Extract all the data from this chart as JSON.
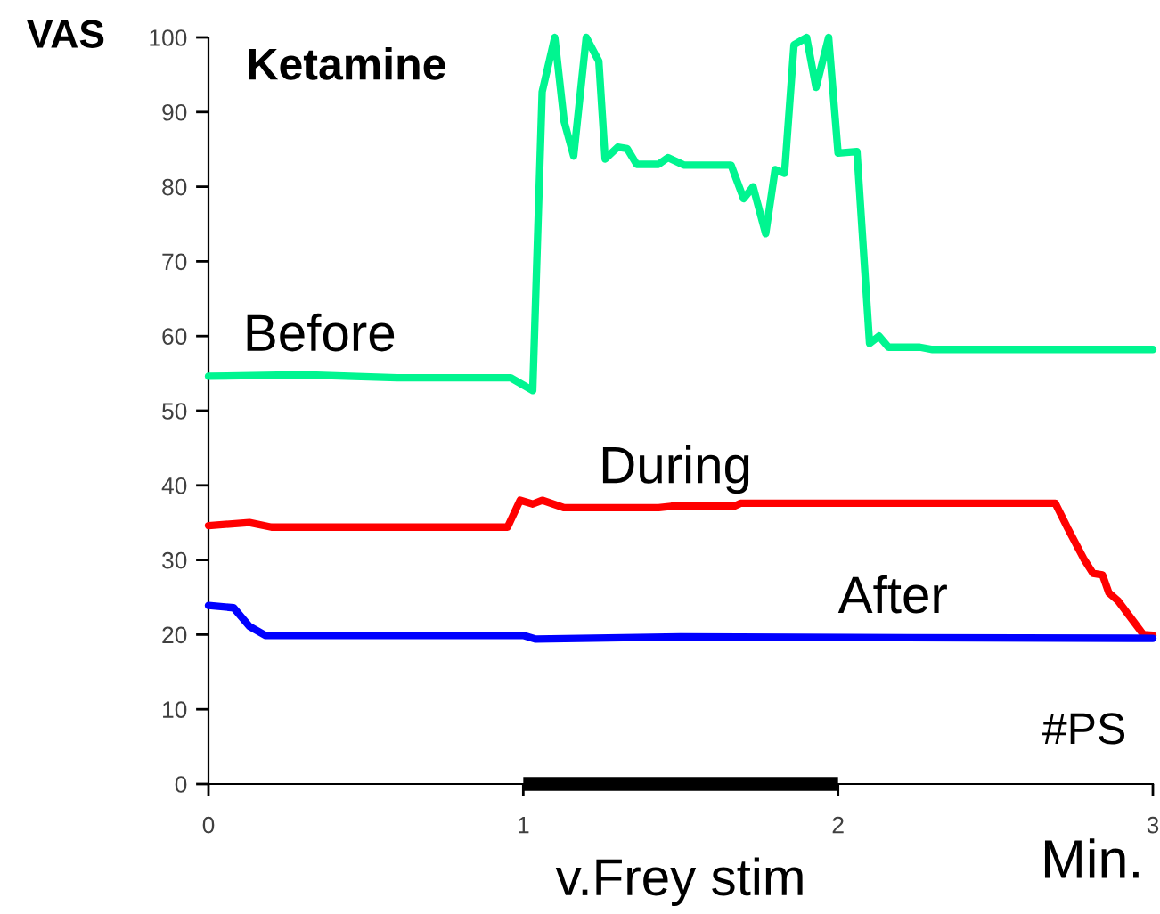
{
  "chart_data": {
    "type": "line",
    "title": "Ketamine",
    "xlabel": "Min.",
    "ylabel": "VAS",
    "xlim": [
      0,
      3
    ],
    "ylim": [
      0,
      100
    ],
    "xticks": [
      0,
      1,
      2,
      3
    ],
    "yticks": [
      0,
      10,
      20,
      30,
      40,
      50,
      60,
      70,
      80,
      90,
      100
    ],
    "series": [
      {
        "color": "#00f590",
        "x": [
          0,
          0.3,
          0.6,
          0.96,
          1.03,
          1.06,
          1.1,
          1.13,
          1.16,
          1.2,
          1.24,
          1.26,
          1.3,
          1.33,
          1.36,
          1.43,
          1.46,
          1.51,
          1.58,
          1.66,
          1.7,
          1.73,
          1.77,
          1.8,
          1.83,
          1.86,
          1.9,
          1.93,
          1.97,
          2.0,
          2.06,
          2.1,
          2.13,
          2.16,
          2.26,
          2.3,
          3.0
        ],
        "values": [
          54.6,
          54.8,
          54.4,
          54.4,
          52.7,
          92.7,
          100,
          88.7,
          84.1,
          100,
          96.8,
          83.7,
          85.3,
          85.1,
          83.0,
          83.0,
          83.9,
          82.9,
          82.9,
          82.9,
          78.4,
          80.0,
          73.7,
          82.3,
          81.8,
          99.0,
          100,
          93.3,
          100,
          84.5,
          84.7,
          59.0,
          60.0,
          58.5,
          58.5,
          58.2,
          58.2
        ]
      },
      {
        "color": "#ff0000",
        "x": [
          0,
          0.13,
          0.2,
          0.95,
          0.99,
          1.03,
          1.06,
          1.13,
          1.43,
          1.47,
          1.67,
          1.69,
          2.69,
          2.73,
          2.78,
          2.81,
          2.84,
          2.86,
          2.89,
          2.97,
          3.0
        ],
        "values": [
          34.6,
          35.0,
          34.4,
          34.4,
          38.0,
          37.5,
          38.0,
          37.0,
          37.0,
          37.2,
          37.2,
          37.6,
          37.6,
          34.2,
          30.2,
          28.2,
          28.0,
          25.6,
          24.5,
          20.0,
          19.9
        ]
      },
      {
        "color": "#0000ff",
        "x": [
          0,
          0.08,
          0.13,
          0.18,
          1.0,
          1.04,
          1.5,
          2.05,
          3.0
        ],
        "values": [
          23.9,
          23.6,
          21.1,
          19.9,
          19.9,
          19.4,
          19.7,
          19.6,
          19.5
        ]
      },
      {
        "name": "v.Frey stim",
        "color": "#000000",
        "x": [
          1,
          2
        ],
        "values": [
          0,
          0
        ]
      }
    ],
    "annotations": [
      {
        "text": "Before",
        "x": 0.11,
        "y": 54.7
      },
      {
        "text": "During",
        "x": 1.24,
        "y": 37.0
      },
      {
        "text": "After",
        "x": 2.0,
        "y": 19.6
      },
      "#PS"
    ]
  }
}
